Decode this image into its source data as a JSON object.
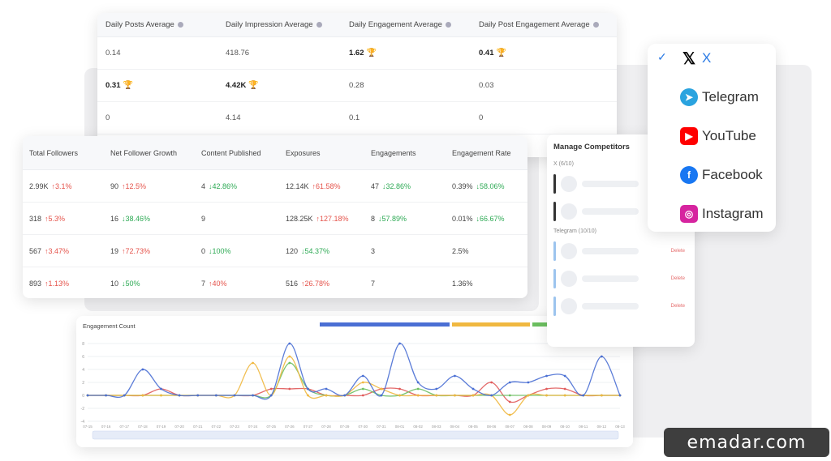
{
  "averages": {
    "headers": [
      "Daily Posts Average",
      "Daily Impression Average",
      "Daily Engagement Average",
      "Daily Post Engagement Average"
    ],
    "rows": [
      [
        {
          "v": "0.14"
        },
        {
          "v": "418.76"
        },
        {
          "v": "1.62",
          "best": true
        },
        {
          "v": "0.41",
          "best": true
        }
      ],
      [
        {
          "v": "0.31",
          "best": true
        },
        {
          "v": "4.42K",
          "best": true
        },
        {
          "v": "0.28"
        },
        {
          "v": "0.03"
        }
      ],
      [
        {
          "v": "0"
        },
        {
          "v": "4.14"
        },
        {
          "v": "0.1"
        },
        {
          "v": "0"
        }
      ]
    ]
  },
  "stats": {
    "headers": [
      "Total Followers",
      "Net Follower Growth",
      "Content Published",
      "Exposures",
      "Engagements",
      "Engagement Rate"
    ],
    "rows": [
      [
        {
          "v": "2.99K",
          "d": "3.1%",
          "dir": "up"
        },
        {
          "v": "90",
          "d": "12.5%",
          "dir": "up"
        },
        {
          "v": "4",
          "d": "42.86%",
          "dir": "down"
        },
        {
          "v": "12.14K",
          "d": "61.58%",
          "dir": "up"
        },
        {
          "v": "47",
          "d": "32.86%",
          "dir": "down"
        },
        {
          "v": "0.39%",
          "d": "58.06%",
          "dir": "down"
        }
      ],
      [
        {
          "v": "318",
          "d": "5.3%",
          "dir": "up"
        },
        {
          "v": "16",
          "d": "38.46%",
          "dir": "down"
        },
        {
          "v": "9",
          "d": "",
          "dir": ""
        },
        {
          "v": "128.25K",
          "d": "127.18%",
          "dir": "up"
        },
        {
          "v": "8",
          "d": "57.89%",
          "dir": "down"
        },
        {
          "v": "0.01%",
          "d": "66.67%",
          "dir": "down"
        }
      ],
      [
        {
          "v": "567",
          "d": "3.47%",
          "dir": "up"
        },
        {
          "v": "19",
          "d": "72.73%",
          "dir": "up"
        },
        {
          "v": "0",
          "d": "100%",
          "dir": "down"
        },
        {
          "v": "120",
          "d": "54.37%",
          "dir": "down"
        },
        {
          "v": "3",
          "d": "",
          "dir": ""
        },
        {
          "v": "2.5%",
          "d": "",
          "dir": ""
        }
      ],
      [
        {
          "v": "893",
          "d": "1.13%",
          "dir": "up"
        },
        {
          "v": "10",
          "d": "50%",
          "dir": "down"
        },
        {
          "v": "7",
          "d": "40%",
          "dir": "up"
        },
        {
          "v": "516",
          "d": "26.78%",
          "dir": "up"
        },
        {
          "v": "7",
          "d": "",
          "dir": ""
        },
        {
          "v": "1.36%",
          "d": "",
          "dir": ""
        }
      ]
    ]
  },
  "competitors": {
    "title": "Manage Competitors",
    "sections": [
      {
        "label": "X (6/10)",
        "count": 2,
        "bar_color": "#333333",
        "delete": ""
      },
      {
        "label": "Telegram (10/10)",
        "count": 3,
        "bar_color": "#9cc4ee",
        "delete": "Delete"
      }
    ]
  },
  "platforms": {
    "items": [
      {
        "name": "X",
        "selected": true,
        "icon": "x-logo-icon",
        "color": "#000000",
        "text_color": "#2c7be5",
        "glyph": "𝕏"
      },
      {
        "name": "Telegram",
        "selected": false,
        "icon": "telegram-icon",
        "color": "#2aa3df",
        "text_color": "#333333",
        "glyph": "➤"
      },
      {
        "name": "YouTube",
        "selected": false,
        "icon": "youtube-icon",
        "color": "#ff0000",
        "text_color": "#333333",
        "glyph": "▶"
      },
      {
        "name": "Facebook",
        "selected": false,
        "icon": "facebook-icon",
        "color": "#1877f2",
        "text_color": "#333333",
        "glyph": "f"
      },
      {
        "name": "Instagram",
        "selected": false,
        "icon": "instagram-icon",
        "color": "#d6249f",
        "text_color": "#333333",
        "glyph": "◎"
      }
    ]
  },
  "chart_data": {
    "type": "line",
    "title": "Engagement Count",
    "ylim": [
      -4,
      8
    ],
    "yticks": [
      "8",
      "6",
      "4",
      "2",
      "0",
      "-2",
      "-4"
    ],
    "legend_placement": "top-right",
    "x": [
      "07-15",
      "07-16",
      "07-17",
      "07-18",
      "07-19",
      "07-20",
      "07-21",
      "07-22",
      "07-23",
      "07-24",
      "07-25",
      "07-26",
      "07-27",
      "07-28",
      "07-29",
      "07-30",
      "07-31",
      "08-01",
      "08-02",
      "08-03",
      "08-04",
      "08-05",
      "08-06",
      "08-07",
      "08-08",
      "08-09",
      "08-10",
      "08-11",
      "08-12",
      "08-13"
    ],
    "series": [
      {
        "color": "#4a6fd4",
        "values": [
          0,
          0,
          0,
          4,
          1,
          0,
          0,
          0,
          0,
          0,
          0,
          8,
          1,
          1,
          0,
          3,
          0,
          8,
          2,
          1,
          3,
          1,
          0,
          2,
          2,
          3,
          3,
          0,
          6,
          0
        ]
      },
      {
        "color": "#f0b840",
        "values": [
          0,
          0,
          0,
          0,
          0,
          0,
          0,
          0,
          0,
          5,
          0,
          6,
          0,
          0,
          0,
          2,
          1,
          0,
          0,
          0,
          0,
          0,
          0,
          -3,
          0,
          0,
          0,
          0,
          0,
          0
        ]
      },
      {
        "color": "#6cbf60",
        "values": [
          0,
          0,
          0,
          0,
          0,
          0,
          0,
          0,
          0,
          0,
          0,
          5,
          1,
          0,
          0,
          1,
          0,
          0,
          1,
          0,
          0,
          0,
          0,
          0,
          0,
          0,
          0,
          0,
          0,
          0
        ]
      },
      {
        "color": "#e05a5a",
        "values": [
          0,
          0,
          0,
          0,
          1,
          0,
          0,
          0,
          0,
          0,
          1,
          1,
          1,
          0,
          0,
          0,
          1,
          1,
          0,
          0,
          0,
          0,
          2,
          -1,
          0,
          1,
          1,
          0,
          0,
          0
        ]
      }
    ]
  },
  "watermark": {
    "text": "emadar.com"
  }
}
